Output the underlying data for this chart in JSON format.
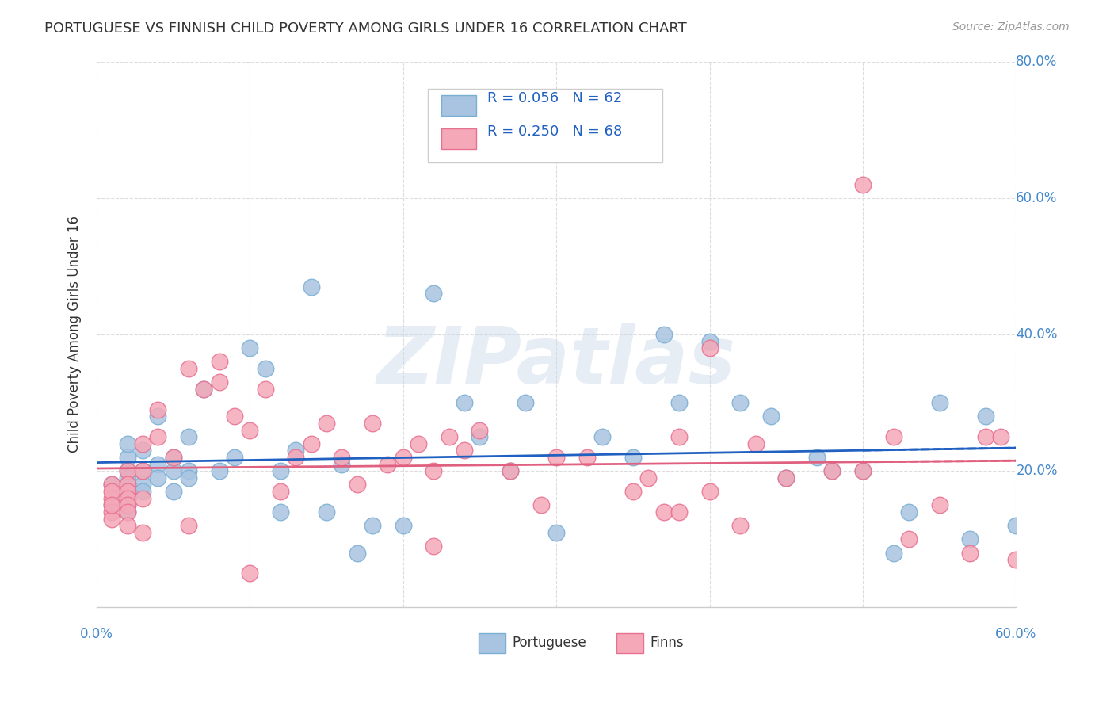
{
  "title": "PORTUGUESE VS FINNISH CHILD POVERTY AMONG GIRLS UNDER 16 CORRELATION CHART",
  "source": "Source: ZipAtlas.com",
  "ylabel": "Child Poverty Among Girls Under 16",
  "xlim": [
    0.0,
    0.6
  ],
  "ylim": [
    0.0,
    0.8
  ],
  "yticks": [
    0.0,
    0.2,
    0.4,
    0.6,
    0.8
  ],
  "ytick_labels": [
    "",
    "20.0%",
    "40.0%",
    "60.0%",
    "80.0%"
  ],
  "xticks": [
    0.0,
    0.1,
    0.2,
    0.3,
    0.4,
    0.5,
    0.6
  ],
  "portuguese_color": "#a8c4e0",
  "finns_color": "#f4a8b8",
  "portuguese_edge": "#7aafd4",
  "finns_edge": "#e87090",
  "trend_portuguese_color": "#2060c0",
  "trend_finns_color": "#e06080",
  "R_portuguese": 0.056,
  "N_portuguese": 62,
  "R_finns": 0.25,
  "N_finns": 68,
  "watermark": "ZIPatlas",
  "portuguese_x": [
    0.01,
    0.01,
    0.02,
    0.02,
    0.02,
    0.02,
    0.02,
    0.02,
    0.02,
    0.02,
    0.02,
    0.02,
    0.03,
    0.03,
    0.03,
    0.03,
    0.04,
    0.04,
    0.04,
    0.05,
    0.05,
    0.05,
    0.06,
    0.06,
    0.06,
    0.07,
    0.08,
    0.09,
    0.1,
    0.11,
    0.12,
    0.12,
    0.13,
    0.14,
    0.15,
    0.16,
    0.17,
    0.18,
    0.2,
    0.22,
    0.24,
    0.25,
    0.27,
    0.28,
    0.3,
    0.33,
    0.35,
    0.37,
    0.38,
    0.4,
    0.42,
    0.44,
    0.45,
    0.47,
    0.48,
    0.5,
    0.52,
    0.53,
    0.55,
    0.57,
    0.58,
    0.6
  ],
  "portuguese_y": [
    0.18,
    0.15,
    0.17,
    0.16,
    0.18,
    0.2,
    0.19,
    0.16,
    0.14,
    0.15,
    0.22,
    0.24,
    0.18,
    0.17,
    0.2,
    0.23,
    0.21,
    0.19,
    0.28,
    0.2,
    0.22,
    0.17,
    0.25,
    0.2,
    0.19,
    0.32,
    0.2,
    0.22,
    0.38,
    0.35,
    0.2,
    0.14,
    0.23,
    0.47,
    0.14,
    0.21,
    0.08,
    0.12,
    0.12,
    0.46,
    0.3,
    0.25,
    0.2,
    0.3,
    0.11,
    0.25,
    0.22,
    0.4,
    0.3,
    0.39,
    0.3,
    0.28,
    0.19,
    0.22,
    0.2,
    0.2,
    0.08,
    0.14,
    0.3,
    0.1,
    0.28,
    0.12
  ],
  "finns_x": [
    0.01,
    0.01,
    0.01,
    0.01,
    0.01,
    0.01,
    0.02,
    0.02,
    0.02,
    0.02,
    0.02,
    0.02,
    0.02,
    0.03,
    0.03,
    0.03,
    0.03,
    0.04,
    0.04,
    0.05,
    0.06,
    0.07,
    0.08,
    0.08,
    0.09,
    0.1,
    0.11,
    0.12,
    0.13,
    0.14,
    0.15,
    0.16,
    0.17,
    0.18,
    0.19,
    0.2,
    0.21,
    0.22,
    0.23,
    0.24,
    0.25,
    0.27,
    0.29,
    0.3,
    0.32,
    0.35,
    0.36,
    0.37,
    0.38,
    0.4,
    0.42,
    0.43,
    0.45,
    0.48,
    0.5,
    0.52,
    0.53,
    0.55,
    0.57,
    0.58,
    0.59,
    0.6,
    0.5,
    0.4,
    0.38,
    0.22,
    0.1,
    0.06
  ],
  "finns_y": [
    0.18,
    0.16,
    0.14,
    0.17,
    0.13,
    0.15,
    0.2,
    0.18,
    0.17,
    0.16,
    0.15,
    0.14,
    0.12,
    0.16,
    0.24,
    0.2,
    0.11,
    0.29,
    0.25,
    0.22,
    0.35,
    0.32,
    0.36,
    0.33,
    0.28,
    0.26,
    0.32,
    0.17,
    0.22,
    0.24,
    0.27,
    0.22,
    0.18,
    0.27,
    0.21,
    0.22,
    0.24,
    0.2,
    0.25,
    0.23,
    0.26,
    0.2,
    0.15,
    0.22,
    0.22,
    0.17,
    0.19,
    0.14,
    0.25,
    0.17,
    0.12,
    0.24,
    0.19,
    0.2,
    0.2,
    0.25,
    0.1,
    0.15,
    0.08,
    0.25,
    0.25,
    0.07,
    0.62,
    0.38,
    0.14,
    0.09,
    0.05,
    0.12
  ],
  "background_color": "#ffffff",
  "grid_color": "#dddddd",
  "title_color": "#333333",
  "tick_color": "#4488cc",
  "source_color": "#999999"
}
